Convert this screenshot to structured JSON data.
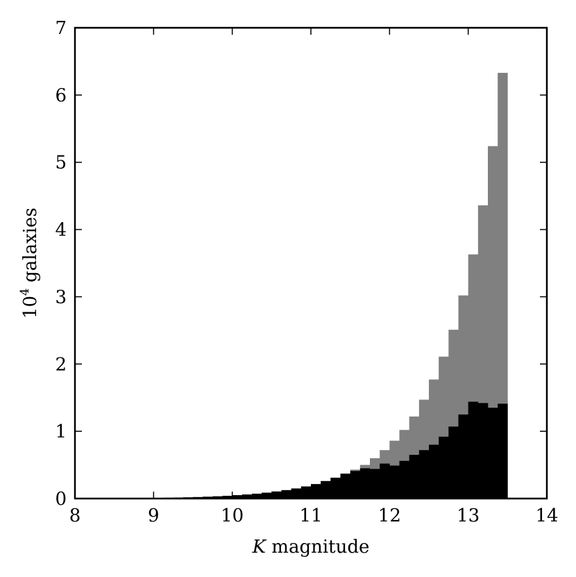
{
  "chart_data": {
    "type": "bar",
    "title": "",
    "xlabel_italic": "K",
    "xlabel_rest": " magnitude",
    "ylabel_base": "10",
    "ylabel_exponent": "4",
    "ylabel_rest": " galaxies",
    "xlim": [
      8,
      14
    ],
    "ylim": [
      0,
      7
    ],
    "xticks": [
      "8",
      "9",
      "10",
      "11",
      "12",
      "13",
      "14"
    ],
    "yticks": [
      "0",
      "1",
      "2",
      "3",
      "4",
      "5",
      "6",
      "7"
    ],
    "bin_width": 0.125,
    "bin_start": 8.0,
    "grid": false,
    "legend": "none",
    "series": [
      {
        "color": "#808080",
        "values": [
          0.0,
          0.0,
          0.003,
          0.004,
          0.005,
          0.006,
          0.007,
          0.008,
          0.01,
          0.012,
          0.015,
          0.018,
          0.022,
          0.027,
          0.033,
          0.04,
          0.05,
          0.06,
          0.072,
          0.087,
          0.105,
          0.125,
          0.15,
          0.18,
          0.215,
          0.26,
          0.31,
          0.37,
          0.43,
          0.5,
          0.6,
          0.72,
          0.86,
          1.02,
          1.22,
          1.47,
          1.77,
          2.11,
          2.51,
          3.02,
          3.63,
          4.36,
          5.24,
          6.33
        ]
      },
      {
        "color": "#000000",
        "values": [
          0.0,
          0.0,
          0.003,
          0.004,
          0.005,
          0.006,
          0.007,
          0.008,
          0.01,
          0.012,
          0.015,
          0.018,
          0.022,
          0.027,
          0.033,
          0.04,
          0.05,
          0.06,
          0.072,
          0.087,
          0.105,
          0.125,
          0.15,
          0.18,
          0.215,
          0.26,
          0.31,
          0.37,
          0.41,
          0.45,
          0.44,
          0.52,
          0.49,
          0.56,
          0.65,
          0.72,
          0.8,
          0.92,
          1.07,
          1.25,
          1.44,
          1.42,
          1.35,
          1.41
        ]
      }
    ]
  }
}
